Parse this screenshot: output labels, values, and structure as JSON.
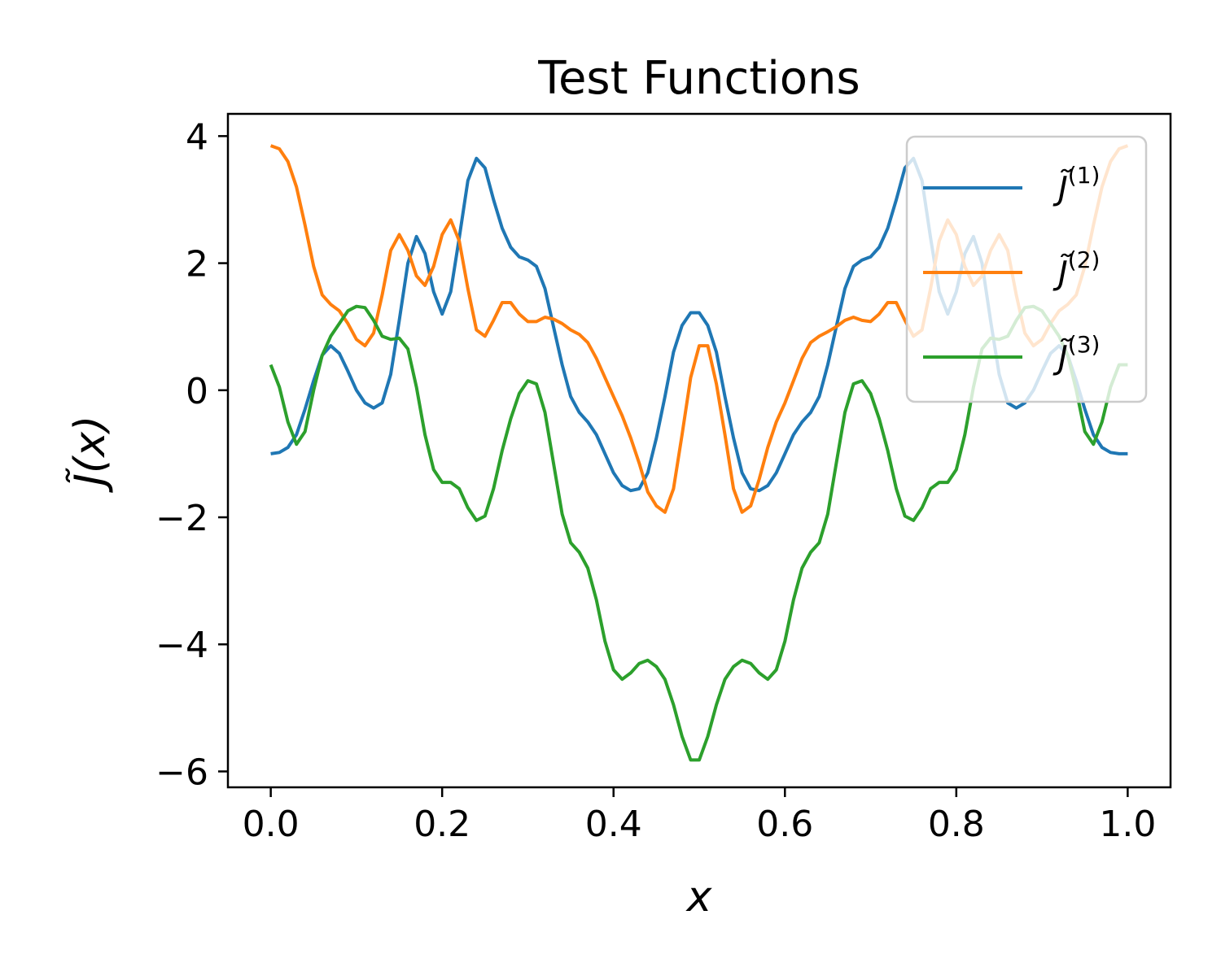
{
  "chart_data": {
    "type": "line",
    "title": "Test Functions",
    "xlabel": "x",
    "ylabel": "J̃(x)",
    "xlim": [
      -0.05,
      1.05
    ],
    "ylim": [
      -6.25,
      4.35
    ],
    "xticks": [
      0.0,
      0.2,
      0.4,
      0.6,
      0.8,
      1.0
    ],
    "xtick_labels": [
      "0.0",
      "0.2",
      "0.4",
      "0.6",
      "0.8",
      "1.0"
    ],
    "yticks": [
      -6,
      -4,
      -2,
      0,
      2,
      4
    ],
    "ytick_labels": [
      "−6",
      "−4",
      "−2",
      "0",
      "2",
      "4"
    ],
    "grid": false,
    "legend_position": "top-right",
    "x": [
      0.0,
      0.01,
      0.02,
      0.03,
      0.04,
      0.05,
      0.06,
      0.07,
      0.08,
      0.09,
      0.1,
      0.11,
      0.12,
      0.13,
      0.14,
      0.15,
      0.16,
      0.17,
      0.18,
      0.19,
      0.2,
      0.21,
      0.22,
      0.23,
      0.24,
      0.25,
      0.26,
      0.27,
      0.28,
      0.29,
      0.3,
      0.31,
      0.32,
      0.33,
      0.34,
      0.35,
      0.36,
      0.37,
      0.38,
      0.39,
      0.4,
      0.41,
      0.42,
      0.43,
      0.44,
      0.45,
      0.46,
      0.47,
      0.48,
      0.49,
      0.5,
      0.51,
      0.52,
      0.53,
      0.54,
      0.55,
      0.56,
      0.57,
      0.58,
      0.59,
      0.6,
      0.61,
      0.62,
      0.63,
      0.64,
      0.65,
      0.66,
      0.67,
      0.68,
      0.69,
      0.7,
      0.71,
      0.72,
      0.73,
      0.74,
      0.75,
      0.76,
      0.77,
      0.78,
      0.79,
      0.8,
      0.81,
      0.82,
      0.83,
      0.84,
      0.85,
      0.86,
      0.87,
      0.88,
      0.89,
      0.9,
      0.91,
      0.92,
      0.93,
      0.94,
      0.95,
      0.96,
      0.97,
      0.98,
      0.99,
      1.0
    ],
    "series": [
      {
        "name": "J̃(1)",
        "superscript": "(1)",
        "color": "#1f77b4",
        "values": [
          -1.0,
          -0.98,
          -0.9,
          -0.7,
          -0.3,
          0.15,
          0.55,
          0.7,
          0.58,
          0.3,
          0.0,
          -0.2,
          -0.28,
          -0.2,
          0.25,
          1.1,
          2.0,
          2.42,
          2.15,
          1.55,
          1.2,
          1.55,
          2.4,
          3.3,
          3.65,
          3.5,
          3.0,
          2.55,
          2.25,
          2.1,
          2.05,
          1.95,
          1.6,
          1.0,
          0.4,
          -0.1,
          -0.35,
          -0.5,
          -0.7,
          -1.0,
          -1.3,
          -1.5,
          -1.58,
          -1.55,
          -1.3,
          -0.75,
          -0.1,
          0.6,
          1.02,
          1.22,
          1.22,
          1.02,
          0.6,
          -0.1,
          -0.75,
          -1.3,
          -1.55,
          -1.58,
          -1.5,
          -1.3,
          -1.0,
          -0.7,
          -0.5,
          -0.35,
          -0.1,
          0.4,
          1.0,
          1.6,
          1.95,
          2.05,
          2.1,
          2.25,
          2.55,
          3.0,
          3.5,
          3.65,
          3.3,
          2.4,
          1.55,
          1.2,
          1.55,
          2.15,
          2.42,
          2.0,
          1.1,
          0.25,
          -0.2,
          -0.28,
          -0.2,
          0.0,
          0.3,
          0.58,
          0.7,
          0.55,
          0.15,
          -0.3,
          -0.7,
          -0.9,
          -0.98,
          -1.0,
          -1.0
        ]
      },
      {
        "name": "J̃(2)",
        "superscript": "(2)",
        "color": "#ff7f0e",
        "values": [
          3.85,
          3.8,
          3.6,
          3.2,
          2.6,
          1.95,
          1.5,
          1.35,
          1.25,
          1.05,
          0.8,
          0.7,
          0.9,
          1.5,
          2.2,
          2.45,
          2.2,
          1.8,
          1.65,
          1.95,
          2.45,
          2.68,
          2.35,
          1.6,
          0.95,
          0.85,
          1.1,
          1.38,
          1.38,
          1.2,
          1.08,
          1.08,
          1.15,
          1.12,
          1.05,
          0.95,
          0.88,
          0.75,
          0.5,
          0.2,
          -0.1,
          -0.4,
          -0.75,
          -1.15,
          -1.6,
          -1.82,
          -1.92,
          -1.55,
          -0.7,
          0.2,
          0.7,
          0.7,
          0.1,
          -0.7,
          -1.55,
          -1.92,
          -1.82,
          -1.4,
          -0.9,
          -0.5,
          -0.2,
          0.15,
          0.5,
          0.75,
          0.85,
          0.92,
          1.0,
          1.1,
          1.15,
          1.1,
          1.08,
          1.2,
          1.38,
          1.38,
          1.1,
          0.85,
          0.95,
          1.6,
          2.35,
          2.68,
          2.45,
          1.95,
          1.65,
          1.8,
          2.2,
          2.45,
          2.2,
          1.5,
          0.9,
          0.7,
          0.8,
          1.05,
          1.25,
          1.35,
          1.5,
          1.95,
          2.6,
          3.2,
          3.6,
          3.8,
          3.85
        ]
      },
      {
        "name": "J̃(3)",
        "superscript": "(3)",
        "color": "#2ca02c",
        "values": [
          0.4,
          0.05,
          -0.5,
          -0.85,
          -0.65,
          0.0,
          0.55,
          0.85,
          1.05,
          1.25,
          1.32,
          1.3,
          1.1,
          0.85,
          0.8,
          0.82,
          0.65,
          0.05,
          -0.7,
          -1.25,
          -1.45,
          -1.45,
          -1.55,
          -1.85,
          -2.05,
          -1.98,
          -1.55,
          -0.95,
          -0.45,
          -0.05,
          0.15,
          0.1,
          -0.35,
          -1.15,
          -1.95,
          -2.4,
          -2.55,
          -2.8,
          -3.3,
          -3.95,
          -4.4,
          -4.55,
          -4.45,
          -4.3,
          -4.25,
          -4.35,
          -4.55,
          -4.95,
          -5.45,
          -5.82,
          -5.82,
          -5.45,
          -4.95,
          -4.55,
          -4.35,
          -4.25,
          -4.3,
          -4.45,
          -4.55,
          -4.4,
          -3.95,
          -3.3,
          -2.8,
          -2.55,
          -2.4,
          -1.95,
          -1.15,
          -0.35,
          0.1,
          0.15,
          -0.05,
          -0.45,
          -0.95,
          -1.55,
          -1.98,
          -2.05,
          -1.85,
          -1.55,
          -1.45,
          -1.45,
          -1.25,
          -0.7,
          0.05,
          0.65,
          0.82,
          0.8,
          0.85,
          1.1,
          1.3,
          1.32,
          1.25,
          1.05,
          0.85,
          0.55,
          0.0,
          -0.65,
          -0.85,
          -0.5,
          0.05,
          0.4,
          0.4
        ]
      }
    ]
  }
}
